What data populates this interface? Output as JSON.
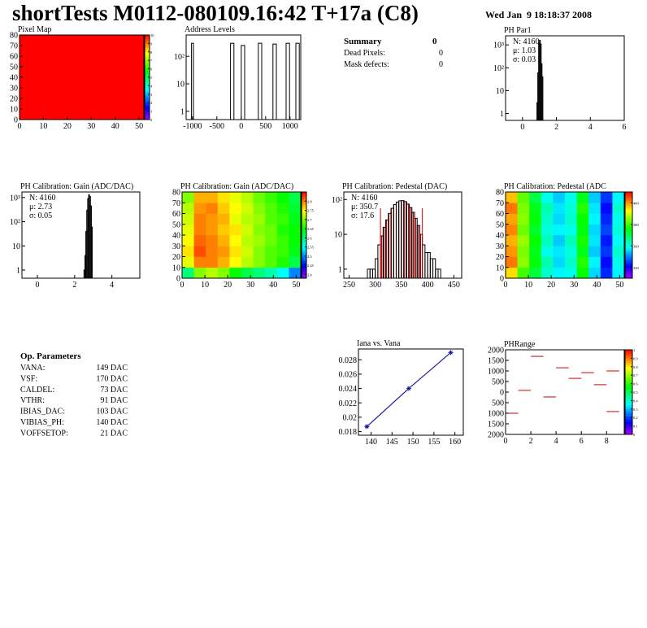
{
  "header": {
    "title": "shortTests M0112-080109.16:42 T+17a (C8)",
    "date": "Wed Jan  9 18:18:37 2008"
  },
  "summary": {
    "title": "Summary",
    "count": "0",
    "rows": [
      {
        "label": "Dead Pixels:",
        "value": "0"
      },
      {
        "label": "Mask defects:",
        "value": "0"
      }
    ]
  },
  "op_parameters": {
    "title": "Op. Parameters",
    "rows": [
      {
        "name": "VANA:",
        "value": "149 DAC"
      },
      {
        "name": "VSF:",
        "value": "170 DAC"
      },
      {
        "name": "CALDEL:",
        "value": "73 DAC"
      },
      {
        "name": "VTHR:",
        "value": "91 DAC"
      },
      {
        "name": "IBIAS_DAC:",
        "value": "103 DAC"
      },
      {
        "name": "VIBIAS_PH:",
        "value": "140 DAC"
      },
      {
        "name": "VOFFSETOP:",
        "value": "21 DAC"
      }
    ]
  },
  "chart_data": [
    {
      "type": "heatmap",
      "title": "Pixel Map",
      "xlim": [
        0,
        52
      ],
      "ylim": [
        0,
        80
      ],
      "xticks": [
        0,
        10,
        20,
        30,
        40,
        50
      ],
      "yticks": [
        0,
        10,
        20,
        30,
        40,
        50,
        60,
        70,
        80
      ],
      "zlim": [
        0,
        10
      ],
      "zticks": [
        0,
        1,
        2,
        3,
        4,
        5,
        6,
        7,
        8,
        9,
        10
      ],
      "z": [
        [
          10,
          10,
          10,
          10,
          10
        ],
        [
          10,
          10,
          10,
          10,
          10
        ],
        [
          10,
          10,
          10,
          10,
          10
        ],
        [
          10,
          10,
          10,
          10,
          10
        ]
      ]
    },
    {
      "type": "histogram",
      "title": "Address Levels",
      "log": true,
      "xlim": [
        -1130,
        1220
      ],
      "ylim": [
        0.5,
        600
      ],
      "xticks": [
        -1000,
        -500,
        0,
        500,
        1000
      ],
      "yticks": [
        1,
        10,
        {
          "value": 100,
          "label": "10²"
        }
      ],
      "bins": [
        -1130,
        -1020,
        -980,
        -220,
        -150,
        0,
        70,
        350,
        420,
        650,
        720,
        920,
        990,
        1120,
        1190,
        1220
      ],
      "counts": [
        0,
        300,
        0,
        300,
        0,
        250,
        0,
        300,
        0,
        280,
        0,
        300,
        0,
        300,
        0
      ]
    },
    {
      "type": "histogram",
      "title": "PH Par1",
      "log": true,
      "xlim": [
        -1,
        6
      ],
      "ylim": [
        0.5,
        2500
      ],
      "xticks": [
        0,
        2,
        4,
        6
      ],
      "yticks": [
        1,
        10,
        {
          "value": 100,
          "label": "10²"
        },
        {
          "value": 1000,
          "label": "10³"
        }
      ],
      "bins": [
        0.85,
        0.9,
        0.95,
        1.0,
        1.05,
        1.1,
        1.15,
        1.2
      ],
      "counts": [
        3,
        60,
        1200,
        1600,
        1100,
        150,
        40
      ],
      "stats": [
        "N: 4160",
        "μ: 1.03",
        "σ: 0.03"
      ]
    },
    {
      "type": "histogram",
      "title": "PH Calibration: Gain (ADC/DAC)",
      "log": true,
      "xlim": [
        -0.83,
        5.5
      ],
      "ylim": [
        0.46,
        1700
      ],
      "xticks": [
        0,
        2,
        4
      ],
      "yticks": [
        1,
        10,
        {
          "value": 100,
          "label": "10²"
        },
        {
          "value": 1000,
          "label": "10³"
        }
      ],
      "bins": [
        2.5,
        2.55,
        2.6,
        2.65,
        2.7,
        2.75,
        2.8,
        2.85,
        2.9,
        2.95
      ],
      "counts": [
        1,
        4,
        40,
        300,
        900,
        1300,
        1100,
        450,
        60
      ],
      "stats": [
        "N: 4160",
        "μ: 2.73",
        "σ: 0.05"
      ]
    },
    {
      "type": "heatmap",
      "title": "PH Calibration: Gain (ADC/DAC)",
      "xlim": [
        0,
        52
      ],
      "ylim": [
        0,
        80
      ],
      "xticks": [
        0,
        10,
        20,
        30,
        40,
        50
      ],
      "yticks": [
        0,
        10,
        20,
        30,
        40,
        50,
        60,
        70,
        80
      ],
      "zlim": [
        2.38,
        2.85
      ],
      "zticks": [
        2.4,
        2.45,
        2.5,
        2.55,
        2.6,
        2.65,
        2.7,
        2.75,
        2.8
      ],
      "z": [
        [
          2.6,
          2.7,
          2.72,
          2.7,
          2.65,
          2.62,
          2.6,
          2.58,
          2.55,
          2.5
        ],
        [
          2.74,
          2.8,
          2.8,
          2.78,
          2.75,
          2.72,
          2.7,
          2.68,
          2.66,
          2.62
        ],
        [
          2.76,
          2.82,
          2.8,
          2.79,
          2.76,
          2.73,
          2.7,
          2.68,
          2.67,
          2.64
        ],
        [
          2.75,
          2.81,
          2.8,
          2.78,
          2.75,
          2.72,
          2.71,
          2.69,
          2.67,
          2.65
        ],
        [
          2.74,
          2.8,
          2.79,
          2.77,
          2.76,
          2.73,
          2.7,
          2.69,
          2.66,
          2.65
        ],
        [
          2.73,
          2.8,
          2.79,
          2.78,
          2.74,
          2.72,
          2.71,
          2.68,
          2.67,
          2.64
        ],
        [
          2.72,
          2.79,
          2.8,
          2.77,
          2.75,
          2.73,
          2.7,
          2.68,
          2.66,
          2.63
        ],
        [
          2.7,
          2.78,
          2.78,
          2.76,
          2.74,
          2.72,
          2.69,
          2.67,
          2.65,
          2.62
        ]
      ]
    },
    {
      "type": "histogram",
      "title": "PH Calibration: Pedestal (DAC)",
      "log": true,
      "xlim": [
        240,
        465
      ],
      "ylim": [
        0.55,
        165
      ],
      "xticks": [
        250,
        300,
        350,
        400,
        450
      ],
      "yticks": [
        1,
        10,
        {
          "value": 100,
          "label": "10²"
        }
      ],
      "bins": [
        285,
        290,
        295,
        300,
        305,
        310,
        315,
        320,
        325,
        330,
        335,
        340,
        345,
        350,
        355,
        360,
        365,
        370,
        375,
        380,
        385,
        390,
        395,
        400,
        405,
        410,
        415,
        420,
        425,
        430
      ],
      "counts": [
        1,
        1,
        1,
        2,
        5,
        9,
        16,
        26,
        40,
        56,
        72,
        85,
        92,
        93,
        87,
        74,
        59,
        43,
        29,
        18,
        10,
        5,
        3,
        3,
        2,
        2,
        1,
        1,
        0
      ],
      "highlight": [
        310,
        390
      ],
      "highlight_color": "#d00000",
      "stats": [
        "N: 4160",
        "μ: 350.7",
        "σ: 17.6"
      ],
      "stats_colors": [
        "#000000",
        "#d00000",
        "#d00000"
      ]
    },
    {
      "type": "heatmap",
      "title": "PH Calibration: Pedestal (ADC",
      "xlim": [
        0,
        52
      ],
      "ylim": [
        0,
        80
      ],
      "xticks": [
        0,
        10,
        20,
        30,
        40,
        50
      ],
      "yticks": [
        0,
        10,
        20,
        30,
        40,
        50,
        60,
        70,
        80
      ],
      "zlim": [
        330,
        410
      ],
      "zticks": [
        340,
        360,
        380,
        400
      ],
      "z": [
        [
          395,
          380,
          372,
          362,
          358,
          360,
          376,
          356,
          344,
          358
        ],
        [
          402,
          385,
          375,
          364,
          356,
          362,
          378,
          358,
          342,
          360
        ],
        [
          400,
          384,
          374,
          360,
          357,
          361,
          374,
          355,
          345,
          362
        ],
        [
          398,
          386,
          376,
          363,
          355,
          363,
          377,
          357,
          343,
          359
        ],
        [
          401,
          383,
          373,
          361,
          358,
          360,
          375,
          356,
          346,
          361
        ],
        [
          399,
          385,
          375,
          362,
          356,
          362,
          376,
          358,
          344,
          360
        ],
        [
          402,
          384,
          374,
          364,
          357,
          361,
          378,
          357,
          342,
          362
        ],
        [
          397,
          382,
          371,
          360,
          355,
          360,
          374,
          355,
          345,
          358
        ]
      ]
    },
    {
      "type": "line",
      "title": "Iana vs. Vana",
      "xlim": [
        137,
        162
      ],
      "ylim": [
        0.0175,
        0.0295
      ],
      "xticks": [
        140,
        145,
        150,
        155,
        160
      ],
      "yticks": [
        0.018,
        0.02,
        0.022,
        0.024,
        0.026,
        0.028
      ],
      "series": [
        {
          "color": "#1a1aa0",
          "x": [
            139,
            149,
            159
          ],
          "values": [
            0.0187,
            0.024,
            0.029
          ]
        }
      ]
    },
    {
      "type": "segments",
      "title": "PHRange",
      "xlim": [
        0,
        9.4
      ],
      "ylim": [
        -2000,
        2000
      ],
      "xticks": [
        0,
        2,
        4,
        6,
        8
      ],
      "yticks": [
        {
          "value": -2000,
          "label": "2000"
        },
        {
          "value": -1500,
          "label": "1500"
        },
        {
          "value": -1000,
          "label": "1000"
        },
        {
          "value": -500,
          "label": "500"
        },
        0,
        500,
        1000,
        1500,
        2000
      ],
      "zlim": [
        0,
        1
      ],
      "zticks": [
        0,
        0.1,
        0.2,
        0.3,
        0.4,
        0.5,
        0.6,
        0.7,
        0.8,
        0.9,
        1
      ],
      "color": "#d00000",
      "x": [
        0.5,
        1.5,
        2.5,
        3.5,
        4.5,
        5.5,
        6.5,
        7.5,
        8.5,
        8.5
      ],
      "values": [
        -1000,
        80,
        1690,
        -230,
        1150,
        650,
        920,
        350,
        1000,
        -920
      ]
    }
  ]
}
